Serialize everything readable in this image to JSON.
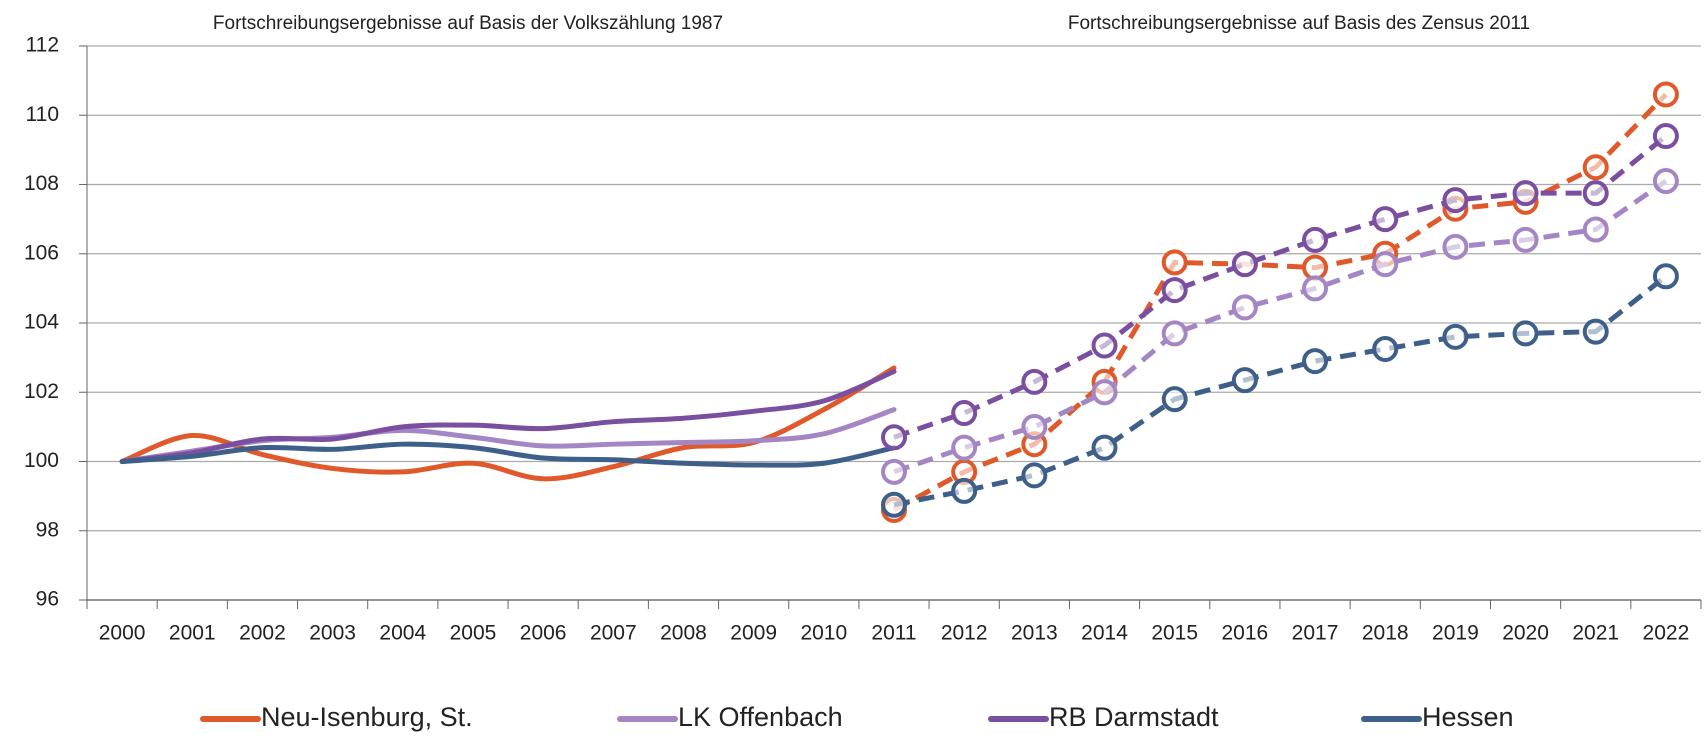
{
  "chart_data": {
    "type": "line",
    "annotations": [
      "Fortschreibungsergebnisse auf Basis der Volkszählung 1987",
      "Fortschreibungsergebnisse auf Basis des Zensus 2011"
    ],
    "categories": [
      "2000",
      "2001",
      "2002",
      "2003",
      "2004",
      "2005",
      "2006",
      "2007",
      "2008",
      "2009",
      "2010",
      "2011",
      "2012",
      "2013",
      "2014",
      "2015",
      "2016",
      "2017",
      "2018",
      "2019",
      "2020",
      "2021",
      "2022"
    ],
    "ylim": [
      96,
      112
    ],
    "yticks": [
      96,
      98,
      100,
      102,
      104,
      106,
      108,
      110,
      112
    ],
    "grid": true,
    "legend": "bottom",
    "series": [
      {
        "name": "Neu-Isenburg, St.",
        "color": "#e0592a",
        "values": [
          100,
          100.75,
          100.2,
          99.8,
          99.7,
          99.95,
          99.5,
          99.85,
          100.4,
          100.55,
          101.5,
          102.7,
          null,
          null,
          null,
          null,
          null,
          null,
          null,
          null,
          null,
          null,
          null
        ],
        "zensus_values": [
          null,
          null,
          null,
          null,
          null,
          null,
          null,
          null,
          null,
          null,
          null,
          98.6,
          99.7,
          100.5,
          102.3,
          105.75,
          105.7,
          105.6,
          106,
          107.3,
          107.5,
          108.5,
          110.6
        ]
      },
      {
        "name": "LK Offenbach",
        "color": "#a486c4",
        "values": [
          100,
          100.3,
          100.6,
          100.7,
          100.9,
          100.7,
          100.45,
          100.5,
          100.55,
          100.6,
          100.8,
          101.5,
          null,
          null,
          null,
          null,
          null,
          null,
          null,
          null,
          null,
          null,
          null
        ],
        "zensus_values": [
          null,
          null,
          null,
          null,
          null,
          null,
          null,
          null,
          null,
          null,
          null,
          99.7,
          100.4,
          101,
          102,
          103.7,
          104.45,
          105,
          105.7,
          106.2,
          106.4,
          106.7,
          108.1
        ]
      },
      {
        "name": "RB Darmstadt",
        "color": "#7b4fa0",
        "values": [
          100,
          100.25,
          100.65,
          100.65,
          101,
          101.05,
          100.95,
          101.15,
          101.25,
          101.45,
          101.75,
          102.6,
          null,
          null,
          null,
          null,
          null,
          null,
          null,
          null,
          null,
          null,
          null
        ],
        "zensus_values": [
          null,
          null,
          null,
          null,
          null,
          null,
          null,
          null,
          null,
          null,
          null,
          100.7,
          101.4,
          102.3,
          103.35,
          104.95,
          105.7,
          106.4,
          107,
          107.55,
          107.75,
          107.75,
          109.4
        ]
      },
      {
        "name": "Hessen",
        "color": "#3e5f8a",
        "values": [
          100,
          100.15,
          100.4,
          100.35,
          100.5,
          100.4,
          100.1,
          100.05,
          99.95,
          99.9,
          99.95,
          100.4,
          null,
          null,
          null,
          null,
          null,
          null,
          null,
          null,
          null,
          null,
          null
        ],
        "zensus_values": [
          null,
          null,
          null,
          null,
          null,
          null,
          null,
          null,
          null,
          null,
          null,
          98.75,
          99.15,
          99.6,
          100.4,
          101.8,
          102.35,
          102.9,
          103.25,
          103.6,
          103.7,
          103.75,
          105.35
        ]
      }
    ]
  }
}
